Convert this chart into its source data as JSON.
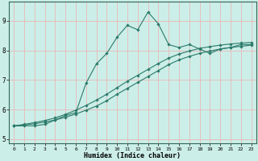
{
  "title": "",
  "xlabel": "Humidex (Indice chaleur)",
  "bg_color": "#cceee8",
  "grid_color": "#e8b8b8",
  "line_color": "#2a7a6a",
  "xlim": [
    -0.5,
    23.5
  ],
  "ylim": [
    4.85,
    9.65
  ],
  "yticks": [
    5,
    6,
    7,
    8,
    9
  ],
  "xticks": [
    0,
    1,
    2,
    3,
    4,
    5,
    6,
    7,
    8,
    9,
    10,
    11,
    12,
    13,
    14,
    15,
    16,
    17,
    18,
    19,
    20,
    21,
    22,
    23
  ],
  "main_x": [
    0,
    1,
    2,
    3,
    4,
    5,
    6,
    7,
    8,
    9,
    10,
    11,
    12,
    13,
    14,
    15,
    16,
    17,
    18,
    19,
    20,
    21,
    22,
    23
  ],
  "main_y": [
    5.45,
    5.45,
    5.45,
    5.5,
    5.65,
    5.8,
    5.9,
    6.9,
    7.55,
    7.9,
    8.45,
    8.85,
    8.7,
    9.3,
    8.9,
    8.2,
    8.1,
    8.2,
    8.05,
    7.9,
    8.05,
    8.1,
    8.2,
    8.2
  ],
  "line1_x": [
    0,
    1,
    2,
    3,
    4,
    5,
    6,
    7,
    8,
    9,
    10,
    11,
    12,
    13,
    14,
    15,
    16,
    17,
    18,
    19,
    20,
    21,
    22,
    23
  ],
  "line1_y": [
    5.45,
    5.48,
    5.52,
    5.58,
    5.65,
    5.74,
    5.85,
    5.98,
    6.12,
    6.3,
    6.52,
    6.72,
    6.92,
    7.12,
    7.32,
    7.52,
    7.68,
    7.8,
    7.9,
    7.98,
    8.05,
    8.1,
    8.14,
    8.18
  ],
  "line2_x": [
    0,
    1,
    2,
    3,
    4,
    5,
    6,
    7,
    8,
    9,
    10,
    11,
    12,
    13,
    14,
    15,
    16,
    17,
    18,
    19,
    20,
    21,
    22,
    23
  ],
  "line2_y": [
    5.45,
    5.5,
    5.56,
    5.63,
    5.72,
    5.84,
    5.98,
    6.14,
    6.32,
    6.52,
    6.74,
    6.96,
    7.16,
    7.36,
    7.56,
    7.74,
    7.88,
    7.98,
    8.07,
    8.13,
    8.18,
    8.22,
    8.25,
    8.27
  ]
}
